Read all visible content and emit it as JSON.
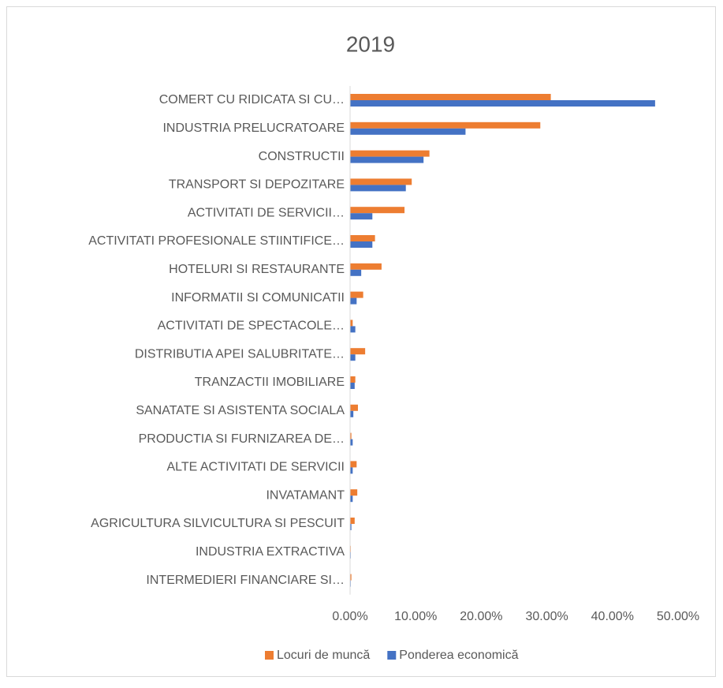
{
  "chart_data": {
    "type": "hbar",
    "title": "2019",
    "categories": [
      "COMERT CU RIDICATA SI CU…",
      "INDUSTRIA PRELUCRATOARE",
      "CONSTRUCTII",
      "TRANSPORT SI DEPOZITARE",
      "ACTIVITATI DE SERVICII…",
      "ACTIVITATI PROFESIONALE STIINTIFICE…",
      "HOTELURI SI RESTAURANTE",
      "INFORMATII SI COMUNICATII",
      "ACTIVITATI DE SPECTACOLE…",
      "DISTRIBUTIA APEI SALUBRITATE…",
      "TRANZACTII IMOBILIARE",
      "SANATATE SI ASISTENTA SOCIALA",
      "PRODUCTIA SI FURNIZAREA DE…",
      "ALTE ACTIVITATI DE SERVICII",
      "INVATAMANT",
      "AGRICULTURA SILVICULTURA SI PESCUIT",
      "INDUSTRIA EXTRACTIVA",
      "INTERMEDIERI FINANCIARE SI…"
    ],
    "series": [
      {
        "name": "Locuri de muncă",
        "color": "#ed7d31",
        "values": [
          30.6,
          29.0,
          12.1,
          9.4,
          8.3,
          3.8,
          4.8,
          2.0,
          0.4,
          2.3,
          0.8,
          1.2,
          0.2,
          1.0,
          1.1,
          0.7,
          0.1,
          0.2
        ]
      },
      {
        "name": "Ponderea economică",
        "color": "#4472c4",
        "values": [
          46.5,
          17.6,
          11.2,
          8.5,
          3.4,
          3.4,
          1.7,
          1.0,
          0.8,
          0.8,
          0.7,
          0.5,
          0.4,
          0.4,
          0.4,
          0.2,
          0.1,
          0.1
        ]
      }
    ],
    "xlim": [
      0,
      50
    ],
    "xticks": [
      {
        "value": 0,
        "label": "0.00%"
      },
      {
        "value": 10,
        "label": "10.00%"
      },
      {
        "value": 20,
        "label": "20.00%"
      },
      {
        "value": 30,
        "label": "30.00%"
      },
      {
        "value": 40,
        "label": "40.00%"
      },
      {
        "value": 50,
        "label": "50.00%"
      }
    ],
    "legend": "bottom"
  }
}
